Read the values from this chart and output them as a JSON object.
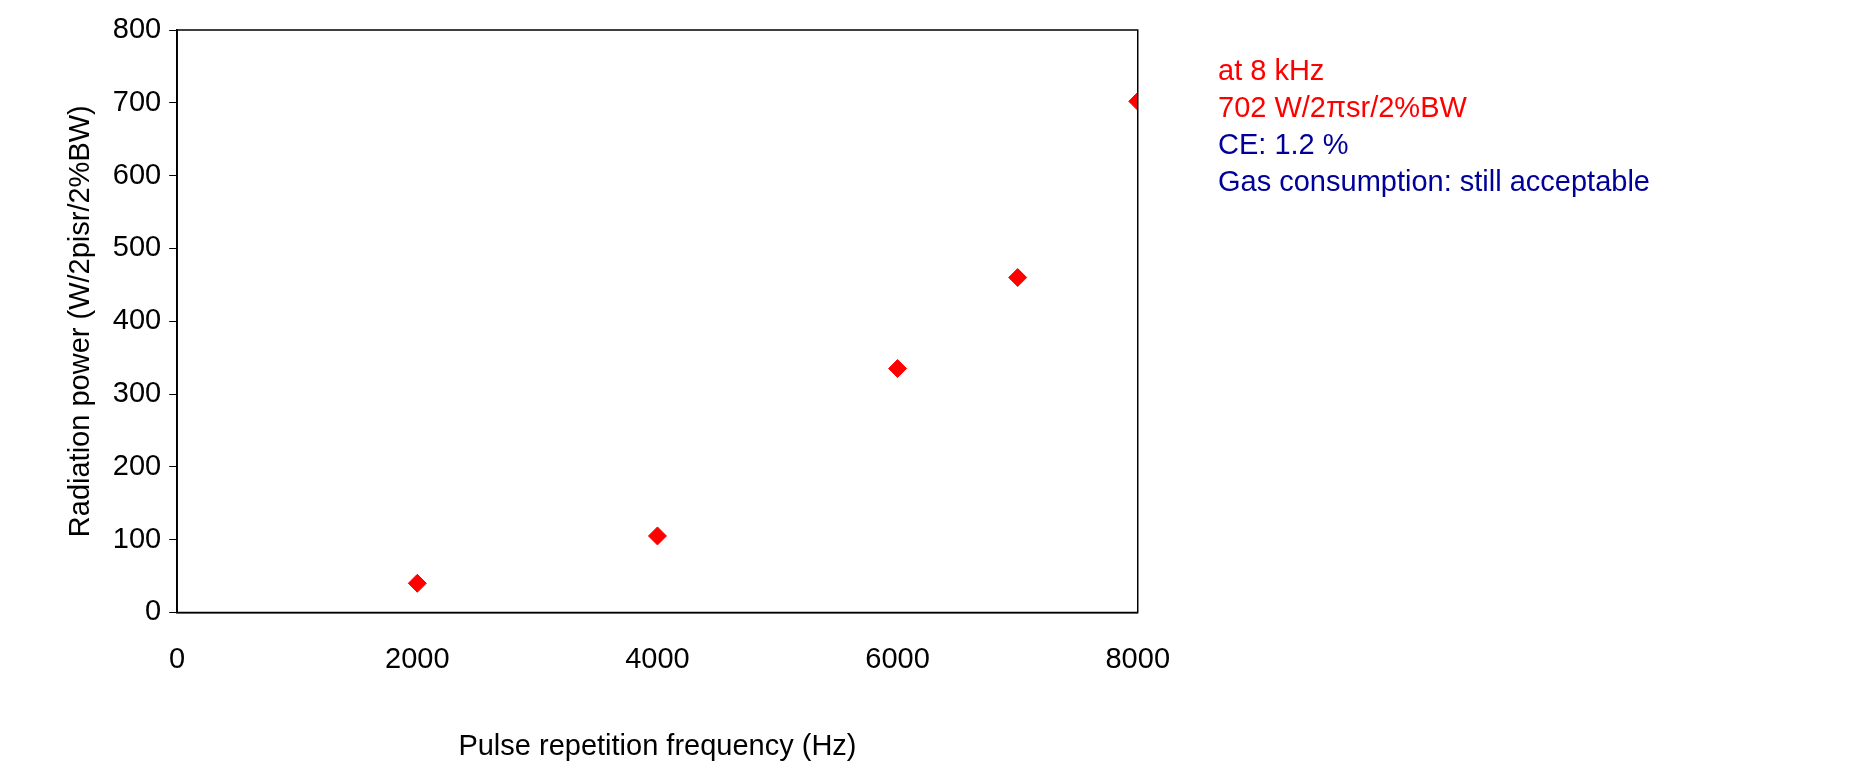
{
  "chart_data": {
    "type": "scatter",
    "xlabel": "Pulse repetition frequency (Hz)",
    "ylabel": "Radiation power (W/2pisr/2%BW)",
    "series": [
      {
        "color": "#ff0000",
        "x": [
          2000,
          4000,
          6000,
          7000,
          8000
        ],
        "values": [
          40,
          105,
          335,
          460,
          702
        ]
      }
    ],
    "xlim": [
      0,
      8000
    ],
    "xticks": [
      0,
      2000,
      4000,
      6000,
      8000
    ],
    "ylim": [
      0,
      800
    ],
    "yticks": [
      0,
      100,
      200,
      300,
      400,
      500,
      600,
      700,
      800
    ],
    "grid": false,
    "legend": false,
    "marker": "diamond",
    "annotations": [
      "at 8 kHz",
      "702 W/2πsr/2%BW",
      "CE: 1.2 %",
      "Gas consumption: still acceptable"
    ]
  }
}
